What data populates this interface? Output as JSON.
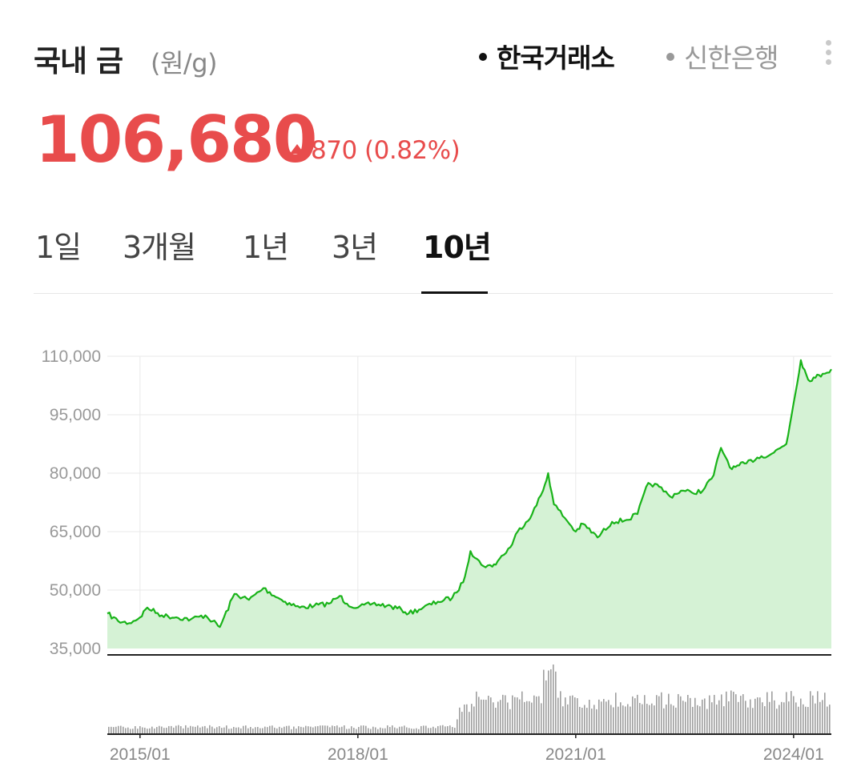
{
  "header": {
    "title": "국내 금",
    "unit": "(원/g)",
    "sources": [
      {
        "label": "한국거래소",
        "active": true
      },
      {
        "label": "신한은행",
        "active": false
      }
    ],
    "more_icon": "more-vertical-icon"
  },
  "quote": {
    "price": "106,680",
    "change": "870",
    "change_pct": "(0.82%)",
    "direction": "up",
    "color": "#e84c4c"
  },
  "tabs": [
    {
      "label": "1일",
      "active": false
    },
    {
      "label": "3개월",
      "active": false
    },
    {
      "label": "1년",
      "active": false
    },
    {
      "label": "3년",
      "active": false
    },
    {
      "label": "10년",
      "active": true
    }
  ],
  "chart_data": {
    "type": "area",
    "title": "",
    "xlabel": "",
    "ylabel": "",
    "line_color": "#19b319",
    "fill_color": "#d5f2d5",
    "ylim": [
      35000,
      110000
    ],
    "y_ticks": [
      35000,
      50000,
      65000,
      80000,
      95000,
      110000
    ],
    "y_tick_labels": [
      "35,000",
      "50,000",
      "65,000",
      "80,000",
      "95,000",
      "110,000"
    ],
    "x_ticks": [
      2015.0,
      2018.0,
      2021.0,
      2024.0
    ],
    "x_tick_labels": [
      "2015/01",
      "2018/01",
      "2021/01",
      "2024/01"
    ],
    "xlim": [
      2014.55,
      2024.52
    ],
    "grid": true,
    "series": [
      {
        "x": [
          2014.55,
          2014.7,
          2014.85,
          2015.0,
          2015.1,
          2015.3,
          2015.5,
          2015.7,
          2015.9,
          2016.0,
          2016.1,
          2016.3,
          2016.5,
          2016.7,
          2016.9,
          2017.0,
          2017.2,
          2017.4,
          2017.6,
          2017.75,
          2017.85,
          2018.0,
          2018.2,
          2018.4,
          2018.6,
          2018.7,
          2018.9,
          2019.1,
          2019.3,
          2019.45,
          2019.55,
          2019.7,
          2019.85,
          2019.95,
          2020.1,
          2020.2,
          2020.4,
          2020.55,
          2020.62,
          2020.7,
          2020.85,
          2021.0,
          2021.1,
          2021.3,
          2021.5,
          2021.7,
          2021.85,
          2022.0,
          2022.15,
          2022.3,
          2022.45,
          2022.6,
          2022.75,
          2022.9,
          2023.0,
          2023.15,
          2023.25,
          2023.35,
          2023.5,
          2023.7,
          2023.9,
          2024.0,
          2024.1,
          2024.2,
          2024.3,
          2024.4,
          2024.52
        ],
        "y": [
          44000,
          42000,
          41500,
          43000,
          45500,
          43500,
          43000,
          42500,
          43500,
          42000,
          40500,
          49000,
          47500,
          50500,
          48000,
          47000,
          45500,
          46000,
          46500,
          48500,
          46500,
          45500,
          46500,
          46000,
          45000,
          44000,
          45500,
          47000,
          48000,
          52000,
          60000,
          56500,
          56000,
          58000,
          61000,
          65000,
          69500,
          75500,
          80000,
          72000,
          68500,
          65000,
          67000,
          63500,
          67500,
          68000,
          69500,
          77500,
          76500,
          74000,
          75500,
          75000,
          75500,
          79500,
          86500,
          81000,
          82000,
          82500,
          84000,
          85000,
          87500,
          98000,
          109000,
          104000,
          104500,
          105500,
          106680
        ]
      }
    ],
    "volume": {
      "color": "#9e9e9e",
      "min_height": 0,
      "max_height": 31
    }
  }
}
